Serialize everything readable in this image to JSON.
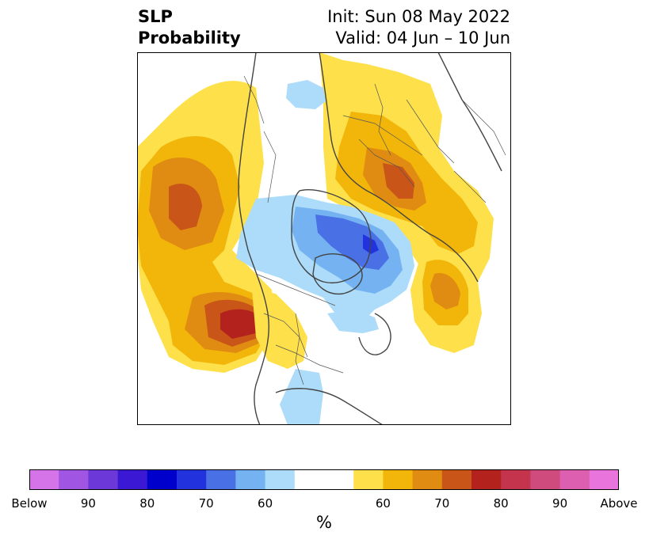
{
  "header": {
    "title_line1": "SLP",
    "title_line2": "Probability",
    "init": "Init: Sun 08 May 2022",
    "valid": "Valid: 04 Jun – 10 Jun"
  },
  "colorbar": {
    "unit": "%",
    "colors": [
      "#d474e8",
      "#a055e3",
      "#6c38d8",
      "#3a18d4",
      "#0000cc",
      "#2233dd",
      "#4a70e6",
      "#74b2f2",
      "#acdcfa",
      "#ffffff",
      "#ffffff",
      "#fde04a",
      "#f2b60a",
      "#e08b12",
      "#c95519",
      "#b3221c",
      "#c4344d",
      "#cf4b7e",
      "#dc5fb0",
      "#e874dc"
    ],
    "tick_labels": [
      "Below",
      "90",
      "80",
      "70",
      "60",
      "",
      "60",
      "70",
      "80",
      "90",
      "Above"
    ]
  },
  "colors": {
    "below_60": "#acdcfa",
    "below_70": "#74b2f2",
    "below_80": "#4a70e6",
    "below_90": "#2233dd",
    "above_60": "#fde04a",
    "above_70": "#f2b60a",
    "above_80": "#e08b12",
    "above_90": "#c95519",
    "above_max": "#b3221c"
  }
}
